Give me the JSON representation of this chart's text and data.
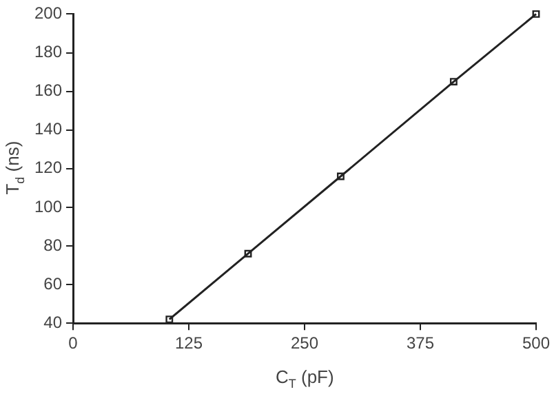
{
  "chart_data": {
    "type": "line",
    "xlabel": "C$_{T}$ (pF)",
    "ylabel": "T$_{d}$ (ns)",
    "x": [
      104,
      189,
      289,
      411,
      500
    ],
    "series": [
      {
        "color": "#222222",
        "values": [
          42,
          76,
          116,
          165,
          200
        ]
      }
    ],
    "xlim": [
      0,
      500
    ],
    "xticks": [
      0,
      125,
      250,
      375,
      500
    ],
    "ylim": [
      40,
      200
    ],
    "yticks": [
      40,
      60,
      80,
      100,
      120,
      140,
      160,
      180,
      200
    ],
    "grid": false,
    "legend": false,
    "marker": "square",
    "line_style": "solid"
  }
}
